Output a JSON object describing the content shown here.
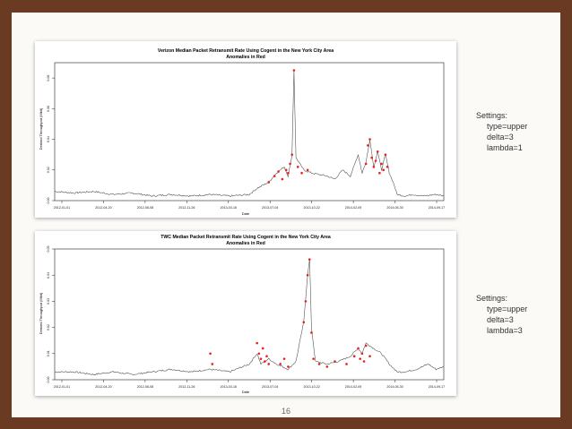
{
  "slide": {
    "page_number": "16"
  },
  "settings": [
    {
      "heading": "Settings:",
      "lines": [
        "type=upper",
        "delta=3",
        "lambda=1"
      ]
    },
    {
      "heading": "Settings:",
      "lines": [
        "type=upper",
        "delta=3",
        "lambda=3"
      ]
    }
  ],
  "colors": {
    "normal": "#555555",
    "anomaly": "#e8201c",
    "background": "#6b3a22"
  },
  "chart_data": [
    {
      "type": "line",
      "title": "Verizon Median Packet Retransmit Rate Using Cogent in the New York City Area",
      "subtitle": "Anomalies in Red",
      "xlabel": "Date",
      "ylabel": "Derived Throughput (Mbit)",
      "x_ticks": [
        "2012-01-01",
        "2012-04-20",
        "2012-08-08",
        "2012-11-26",
        "2013-03-16",
        "2013-07-04",
        "2013-10-22",
        "2014-02-09",
        "2014-05-30",
        "2014-09-17"
      ],
      "y_ticks": [
        "0.00",
        "0.02",
        "0.04",
        "0.06",
        "0.08"
      ],
      "ylim": [
        0,
        0.09
      ],
      "grid": false,
      "series": [
        {
          "values": [
            [
              0,
              0.006
            ],
            [
              0.05,
              0.005
            ],
            [
              0.1,
              0.006
            ],
            [
              0.15,
              0.004
            ],
            [
              0.2,
              0.005
            ],
            [
              0.25,
              0.003
            ],
            [
              0.3,
              0.004
            ],
            [
              0.35,
              0.003
            ],
            [
              0.4,
              0.004
            ],
            [
              0.45,
              0.003
            ],
            [
              0.5,
              0.004
            ],
            [
              0.52,
              0.008
            ],
            [
              0.55,
              0.012
            ],
            [
              0.57,
              0.018
            ],
            [
              0.59,
              0.022
            ],
            [
              0.6,
              0.016
            ],
            [
              0.61,
              0.03
            ],
            [
              0.615,
              0.085
            ],
            [
              0.62,
              0.028
            ],
            [
              0.64,
              0.02
            ],
            [
              0.66,
              0.018
            ],
            [
              0.7,
              0.016
            ],
            [
              0.72,
              0.014
            ],
            [
              0.74,
              0.02
            ],
            [
              0.76,
              0.016
            ],
            [
              0.78,
              0.03
            ],
            [
              0.79,
              0.018
            ],
            [
              0.8,
              0.025
            ],
            [
              0.81,
              0.04
            ],
            [
              0.82,
              0.022
            ],
            [
              0.83,
              0.032
            ],
            [
              0.84,
              0.02
            ],
            [
              0.85,
              0.03
            ],
            [
              0.86,
              0.018
            ],
            [
              0.87,
              0.012
            ],
            [
              0.88,
              0.004
            ],
            [
              0.9,
              0.003
            ],
            [
              0.92,
              0.004
            ],
            [
              0.95,
              0.003
            ],
            [
              0.98,
              0.004
            ],
            [
              1.0,
              0.003
            ]
          ]
        },
        {
          "values": [
            [
              0.55,
              0.012
            ],
            [
              0.565,
              0.016
            ],
            [
              0.575,
              0.019
            ],
            [
              0.585,
              0.014
            ],
            [
              0.595,
              0.02
            ],
            [
              0.6,
              0.018
            ],
            [
              0.605,
              0.024
            ],
            [
              0.61,
              0.03
            ],
            [
              0.615,
              0.085
            ],
            [
              0.625,
              0.022
            ],
            [
              0.635,
              0.018
            ],
            [
              0.65,
              0.02
            ],
            [
              0.8,
              0.024
            ],
            [
              0.805,
              0.036
            ],
            [
              0.81,
              0.04
            ],
            [
              0.815,
              0.028
            ],
            [
              0.82,
              0.022
            ],
            [
              0.825,
              0.026
            ],
            [
              0.83,
              0.032
            ],
            [
              0.835,
              0.018
            ],
            [
              0.84,
              0.024
            ],
            [
              0.845,
              0.02
            ],
            [
              0.85,
              0.03
            ],
            [
              0.855,
              0.022
            ]
          ]
        }
      ]
    },
    {
      "type": "line",
      "title": "TWC Median Packet Retransmit Rate Using Cogent in the New York City Area",
      "subtitle": "Anomalies in Red",
      "xlabel": "Date",
      "ylabel": "Derived Throughput (Mbit)",
      "x_ticks": [
        "2012-01-01",
        "2012-04-20",
        "2012-08-08",
        "2012-11-26",
        "2013-03-16",
        "2013-07-04",
        "2013-10-22",
        "2014-02-09",
        "2014-05-30",
        "2014-09-17"
      ],
      "y_ticks": [
        "0.00",
        "0.01",
        "0.02",
        "0.03",
        "0.04",
        "0.05"
      ],
      "ylim": [
        0,
        0.05
      ],
      "grid": false,
      "series": [
        {
          "values": [
            [
              0,
              0.003
            ],
            [
              0.05,
              0.003
            ],
            [
              0.1,
              0.002
            ],
            [
              0.15,
              0.003
            ],
            [
              0.2,
              0.002
            ],
            [
              0.25,
              0.003
            ],
            [
              0.3,
              0.004
            ],
            [
              0.35,
              0.003
            ],
            [
              0.4,
              0.004
            ],
            [
              0.45,
              0.003
            ],
            [
              0.5,
              0.006
            ],
            [
              0.52,
              0.01
            ],
            [
              0.53,
              0.006
            ],
            [
              0.55,
              0.008
            ],
            [
              0.57,
              0.006
            ],
            [
              0.6,
              0.004
            ],
            [
              0.62,
              0.007
            ],
            [
              0.64,
              0.022
            ],
            [
              0.65,
              0.04
            ],
            [
              0.655,
              0.046
            ],
            [
              0.66,
              0.02
            ],
            [
              0.67,
              0.007
            ],
            [
              0.7,
              0.006
            ],
            [
              0.73,
              0.007
            ],
            [
              0.76,
              0.009
            ],
            [
              0.78,
              0.012
            ],
            [
              0.79,
              0.01
            ],
            [
              0.8,
              0.014
            ],
            [
              0.82,
              0.012
            ],
            [
              0.84,
              0.01
            ],
            [
              0.86,
              0.006
            ],
            [
              0.88,
              0.003
            ],
            [
              0.9,
              0.003
            ],
            [
              0.93,
              0.004
            ],
            [
              0.96,
              0.006
            ],
            [
              0.98,
              0.004
            ],
            [
              1.0,
              0.005
            ]
          ]
        },
        {
          "values": [
            [
              0.4,
              0.01
            ],
            [
              0.405,
              0.006
            ],
            [
              0.52,
              0.014
            ],
            [
              0.525,
              0.01
            ],
            [
              0.53,
              0.008
            ],
            [
              0.535,
              0.012
            ],
            [
              0.54,
              0.007
            ],
            [
              0.545,
              0.009
            ],
            [
              0.55,
              0.006
            ],
            [
              0.58,
              0.006
            ],
            [
              0.59,
              0.008
            ],
            [
              0.6,
              0.005
            ],
            [
              0.64,
              0.022
            ],
            [
              0.645,
              0.03
            ],
            [
              0.65,
              0.04
            ],
            [
              0.655,
              0.046
            ],
            [
              0.66,
              0.018
            ],
            [
              0.665,
              0.008
            ],
            [
              0.68,
              0.006
            ],
            [
              0.7,
              0.005
            ],
            [
              0.72,
              0.007
            ],
            [
              0.75,
              0.006
            ],
            [
              0.77,
              0.009
            ],
            [
              0.78,
              0.012
            ],
            [
              0.785,
              0.008
            ],
            [
              0.79,
              0.01
            ],
            [
              0.795,
              0.007
            ],
            [
              0.8,
              0.013
            ],
            [
              0.81,
              0.009
            ]
          ]
        }
      ]
    }
  ]
}
